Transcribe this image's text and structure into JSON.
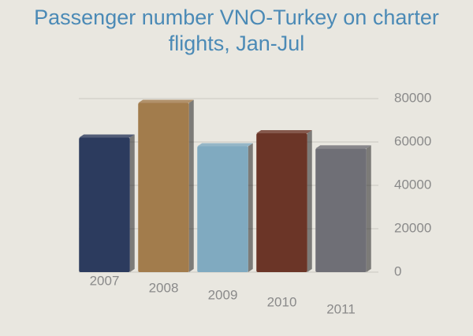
{
  "chart_data": {
    "type": "bar",
    "title": "Passenger number VNO-Turkey on charter flights, Jan-Jul",
    "categories": [
      "2007",
      "2008",
      "2009",
      "2010",
      "2011"
    ],
    "values": [
      62000,
      78000,
      58000,
      64000,
      57000
    ],
    "colors": [
      "#2c3b5e",
      "#a27c4c",
      "#80aac0",
      "#6b3527",
      "#6f6f76"
    ],
    "ylim": [
      0,
      80000
    ],
    "yticks": [
      0,
      20000,
      40000,
      60000,
      80000
    ],
    "grid": true
  }
}
